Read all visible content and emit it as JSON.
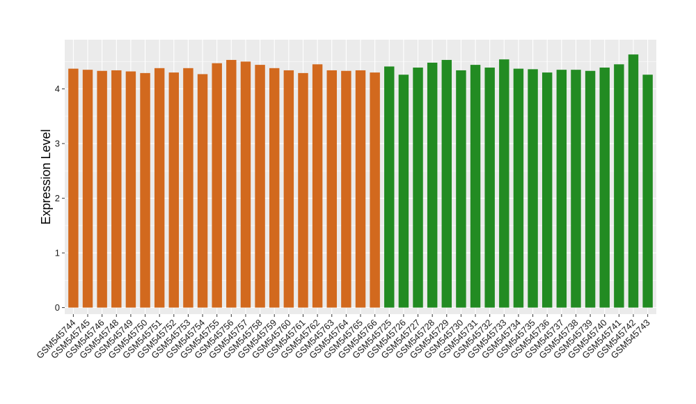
{
  "chart_data": {
    "type": "bar",
    "title": "",
    "xlabel": "",
    "ylabel": "Expression Level",
    "ylim": [
      -0.12,
      4.9
    ],
    "yticks": [
      0,
      1,
      2,
      3,
      4
    ],
    "grid": true,
    "legend": "none",
    "panel_background": "#EBEBEB",
    "grid_color": "#FFFFFF",
    "categories": [
      "GSM545744",
      "GSM545745",
      "GSM545746",
      "GSM545748",
      "GSM545749",
      "GSM545750",
      "GSM545751",
      "GSM545752",
      "GSM545753",
      "GSM545754",
      "GSM545755",
      "GSM545756",
      "GSM545757",
      "GSM545758",
      "GSM545759",
      "GSM545760",
      "GSM545761",
      "GSM545762",
      "GSM545763",
      "GSM545764",
      "GSM545765",
      "GSM545766",
      "GSM545725",
      "GSM545726",
      "GSM545727",
      "GSM545728",
      "GSM545729",
      "GSM545730",
      "GSM545731",
      "GSM545732",
      "GSM545733",
      "GSM545734",
      "GSM545735",
      "GSM545736",
      "GSM545737",
      "GSM545738",
      "GSM545739",
      "GSM545740",
      "GSM545741",
      "GSM545742",
      "GSM545743"
    ],
    "values": [
      4.37,
      4.35,
      4.33,
      4.34,
      4.32,
      4.29,
      4.38,
      4.3,
      4.38,
      4.27,
      4.47,
      4.53,
      4.5,
      4.44,
      4.38,
      4.34,
      4.29,
      4.45,
      4.34,
      4.33,
      4.34,
      4.3,
      4.41,
      4.26,
      4.39,
      4.48,
      4.53,
      4.34,
      4.44,
      4.39,
      4.54,
      4.37,
      4.36,
      4.3,
      4.35,
      4.35,
      4.33,
      4.39,
      4.45,
      4.63,
      4.26
    ],
    "colors": [
      "#D2691E",
      "#D2691E",
      "#D2691E",
      "#D2691E",
      "#D2691E",
      "#D2691E",
      "#D2691E",
      "#D2691E",
      "#D2691E",
      "#D2691E",
      "#D2691E",
      "#D2691E",
      "#D2691E",
      "#D2691E",
      "#D2691E",
      "#D2691E",
      "#D2691E",
      "#D2691E",
      "#D2691E",
      "#D2691E",
      "#D2691E",
      "#D2691E",
      "#228B22",
      "#228B22",
      "#228B22",
      "#228B22",
      "#228B22",
      "#228B22",
      "#228B22",
      "#228B22",
      "#228B22",
      "#228B22",
      "#228B22",
      "#228B22",
      "#228B22",
      "#228B22",
      "#228B22",
      "#228B22",
      "#228B22",
      "#228B22",
      "#228B22"
    ]
  }
}
